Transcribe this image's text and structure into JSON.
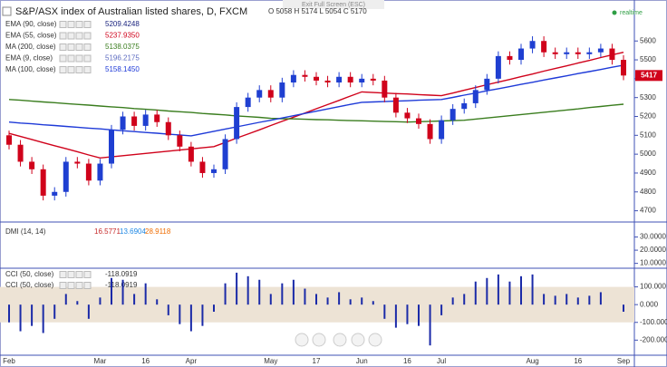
{
  "header": {
    "title": "S&P/ASX index of Australian listed shares, D, FXCM",
    "ohlc": "O 5058 H 5174 L 5054 C 5170",
    "exit": "Exit Full Screen (ESC)",
    "realtime": "realtime"
  },
  "chart_data": [
    {
      "type": "candlestick",
      "up_color": "#1f3fd1",
      "down_color": "#d0021b",
      "categories": [
        "Feb",
        null,
        null,
        null,
        null,
        null,
        null,
        null,
        "Mar",
        null,
        null,
        null,
        "16",
        null,
        null,
        null,
        "Apr",
        null,
        null,
        null,
        null,
        null,
        null,
        "May",
        null,
        null,
        null,
        "17",
        null,
        null,
        null,
        "Jun",
        null,
        null,
        null,
        "16",
        null,
        null,
        "Jul",
        null,
        null,
        null,
        null,
        null,
        null,
        null,
        "Aug",
        null,
        null,
        null,
        "16",
        null,
        null,
        null,
        "Sep"
      ],
      "candles": [
        [
          5100,
          5125,
          5025,
          5050
        ],
        [
          5050,
          5075,
          4935,
          4960
        ],
        [
          4960,
          4985,
          4895,
          4920
        ],
        [
          4920,
          4945,
          4755,
          4780
        ],
        [
          4780,
          4825,
          4755,
          4800
        ],
        [
          4800,
          4985,
          4775,
          4960
        ],
        [
          4960,
          4985,
          4925,
          4950
        ],
        [
          4950,
          4975,
          4835,
          4860
        ],
        [
          4860,
          4975,
          4835,
          4950
        ],
        [
          4950,
          5155,
          4925,
          5130
        ],
        [
          5130,
          5225,
          5105,
          5200
        ],
        [
          5200,
          5225,
          5125,
          5150
        ],
        [
          5150,
          5235,
          5125,
          5210
        ],
        [
          5210,
          5235,
          5145,
          5170
        ],
        [
          5170,
          5195,
          5075,
          5100
        ],
        [
          5100,
          5125,
          5015,
          5040
        ],
        [
          5040,
          5065,
          4935,
          4960
        ],
        [
          4960,
          4985,
          4875,
          4900
        ],
        [
          4900,
          4945,
          4875,
          4920
        ],
        [
          4920,
          5105,
          4895,
          5080
        ],
        [
          5080,
          5275,
          5055,
          5250
        ],
        [
          5250,
          5325,
          5225,
          5300
        ],
        [
          5300,
          5365,
          5275,
          5340
        ],
        [
          5340,
          5365,
          5275,
          5300
        ],
        [
          5300,
          5405,
          5275,
          5380
        ],
        [
          5380,
          5445,
          5355,
          5420
        ],
        [
          5420,
          5445,
          5385,
          5410
        ],
        [
          5410,
          5435,
          5365,
          5390
        ],
        [
          5390,
          5415,
          5355,
          5380
        ],
        [
          5380,
          5435,
          5355,
          5410
        ],
        [
          5410,
          5435,
          5355,
          5380
        ],
        [
          5380,
          5425,
          5355,
          5400
        ],
        [
          5400,
          5425,
          5365,
          5390
        ],
        [
          5390,
          5415,
          5275,
          5300
        ],
        [
          5300,
          5325,
          5195,
          5220
        ],
        [
          5220,
          5245,
          5165,
          5190
        ],
        [
          5190,
          5215,
          5135,
          5160
        ],
        [
          5160,
          5185,
          5055,
          5080
        ],
        [
          5080,
          5205,
          5055,
          5180
        ],
        [
          5180,
          5265,
          5155,
          5240
        ],
        [
          5240,
          5295,
          5215,
          5270
        ],
        [
          5270,
          5365,
          5245,
          5340
        ],
        [
          5340,
          5425,
          5315,
          5400
        ],
        [
          5400,
          5545,
          5375,
          5520
        ],
        [
          5520,
          5545,
          5475,
          5500
        ],
        [
          5500,
          5585,
          5475,
          5560
        ],
        [
          5560,
          5625,
          5535,
          5600
        ],
        [
          5600,
          5625,
          5515,
          5540
        ],
        [
          5540,
          5565,
          5505,
          5530
        ],
        [
          5530,
          5565,
          5505,
          5540
        ],
        [
          5540,
          5565,
          5505,
          5530
        ],
        [
          5530,
          5565,
          5505,
          5540
        ],
        [
          5540,
          5585,
          5515,
          5560
        ],
        [
          5560,
          5585,
          5475,
          5500
        ],
        [
          5500,
          5525,
          5392,
          5417
        ]
      ],
      "indicators": [
        {
          "name": "EMA (90, close)",
          "reading": "5209.4248",
          "color": "#1a237e"
        },
        {
          "name": "EMA (55, close)",
          "reading": "5237.9350",
          "color": "#d0021b",
          "values": [
            5110,
            5094,
            5078,
            5061,
            5045,
            5029,
            5013,
            4996,
            4980,
            4986,
            4992,
            4998,
            5004,
            5010,
            5016,
            5022,
            5028,
            5034,
            5040,
            5062,
            5085,
            5107,
            5129,
            5152,
            5174,
            5196,
            5218,
            5241,
            5263,
            5285,
            5308,
            5330,
            5327,
            5324,
            5321,
            5319,
            5316,
            5313,
            5310,
            5324,
            5339,
            5353,
            5368,
            5382,
            5396,
            5411,
            5425,
            5440,
            5454,
            5468,
            5483,
            5497,
            5512,
            5526,
            5540
          ]
        },
        {
          "name": "MA (200, close)",
          "reading": "5138.0375",
          "color": "#3a7d1e",
          "values": [
            5290,
            5286,
            5281,
            5277,
            5273,
            5268,
            5264,
            5260,
            5255,
            5251,
            5247,
            5242,
            5238,
            5234,
            5229,
            5225,
            5221,
            5216,
            5212,
            5208,
            5203,
            5199,
            5195,
            5190,
            5188,
            5187,
            5185,
            5183,
            5182,
            5180,
            5178,
            5177,
            5175,
            5173,
            5172,
            5170,
            5172,
            5174,
            5176,
            5178,
            5180,
            5186,
            5192,
            5198,
            5204,
            5210,
            5216,
            5222,
            5228,
            5234,
            5240,
            5247,
            5253,
            5259,
            5265
          ]
        },
        {
          "name": "EMA (9, close)",
          "reading": "5196.2175",
          "color": "#5c6bc0"
        },
        {
          "name": "MA (100, close)",
          "reading": "5158.1450",
          "color": "#1e3ad8",
          "values": [
            5170,
            5165,
            5161,
            5156,
            5152,
            5147,
            5143,
            5138,
            5134,
            5129,
            5124,
            5120,
            5115,
            5111,
            5106,
            5102,
            5097,
            5109,
            5121,
            5133,
            5145,
            5157,
            5169,
            5180,
            5192,
            5204,
            5216,
            5228,
            5240,
            5252,
            5264,
            5275,
            5277,
            5279,
            5281,
            5283,
            5286,
            5288,
            5290,
            5301,
            5313,
            5324,
            5336,
            5347,
            5358,
            5370,
            5381,
            5393,
            5404,
            5415,
            5427,
            5438,
            5449,
            5461,
            5472
          ]
        }
      ],
      "ylim": [
        4650,
        5750
      ],
      "yticks": [
        4700,
        4800,
        4900,
        5000,
        5100,
        5200,
        5300,
        5400,
        5500,
        5600
      ]
    },
    {
      "type": "dmi",
      "name": "DMI (14, 14)",
      "readings": [
        {
          "text": "16.5771",
          "color": "#c62828"
        },
        {
          "text": "13.6904",
          "color": "#1e88e5"
        },
        {
          "text": "28.9118",
          "color": "#ef6c00"
        }
      ],
      "ylim": [
        7,
        40
      ],
      "yticks": [
        {
          "value": 30,
          "label": "30.0000"
        },
        {
          "value": 20,
          "label": "20.0000"
        },
        {
          "value": 10,
          "label": "10.0000"
        }
      ]
    },
    {
      "type": "cci",
      "legend": [
        {
          "name": "CCI (50, close)",
          "reading": "-118.0919"
        },
        {
          "name": "CCI (50, close)",
          "reading": "-118.0919"
        }
      ],
      "color": "#1a2aa8",
      "band": [
        -100,
        100
      ],
      "values": [
        -100,
        -150,
        -120,
        -160,
        -80,
        60,
        20,
        -80,
        40,
        150,
        140,
        60,
        120,
        30,
        -60,
        -110,
        -150,
        -120,
        -40,
        120,
        180,
        160,
        140,
        60,
        120,
        140,
        90,
        60,
        40,
        70,
        30,
        40,
        20,
        -80,
        -130,
        -110,
        -120,
        -230,
        -60,
        40,
        60,
        130,
        150,
        170,
        130,
        160,
        170,
        60,
        50,
        60,
        40,
        50,
        70,
        0,
        -40
      ],
      "ylim": [
        -280,
        200
      ],
      "yticks": [
        {
          "value": 100,
          "label": "100.000"
        },
        {
          "value": 0,
          "label": "0.000"
        },
        {
          "value": -100,
          "label": "-100.000"
        },
        {
          "value": -200,
          "label": "-200.000"
        }
      ]
    }
  ]
}
